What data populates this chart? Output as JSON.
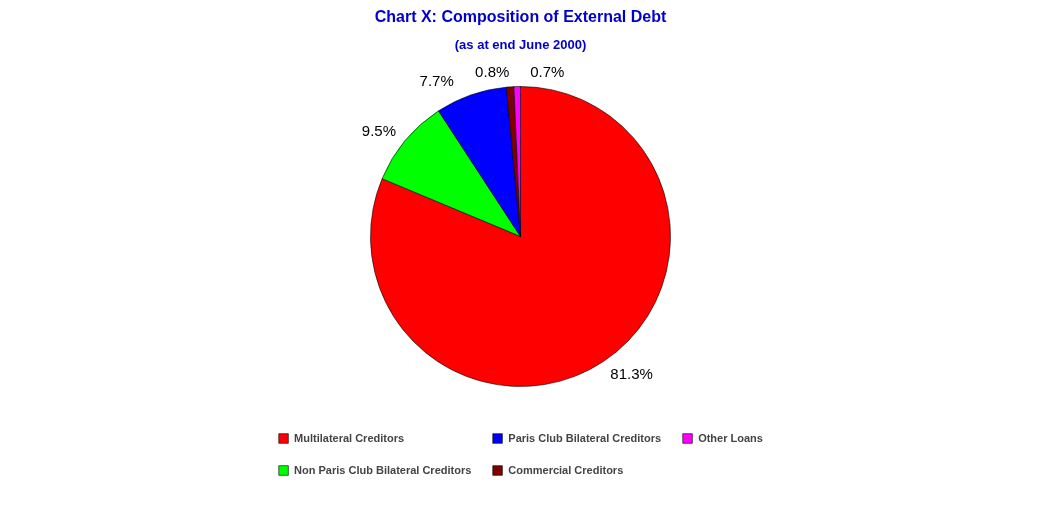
{
  "chart_data": {
    "type": "pie",
    "title": "Chart X: Composition of External Debt",
    "subtitle": "(as at end June 2000)",
    "categories": [
      "Multilateral Creditors",
      "Non Paris Club Bilateral Creditors",
      "Paris Club Bilateral Creditors",
      "Commercial Creditors",
      "Other Loans"
    ],
    "values": [
      81.3,
      9.5,
      7.7,
      0.8,
      0.7
    ],
    "colors": [
      "#ff0000",
      "#00ff00",
      "#0000ff",
      "#800000",
      "#ff00ff"
    ],
    "value_labels": [
      "81.3%",
      "9.5%",
      "7.7%",
      "0.8%",
      "0.7%"
    ],
    "legend": "bottom"
  }
}
